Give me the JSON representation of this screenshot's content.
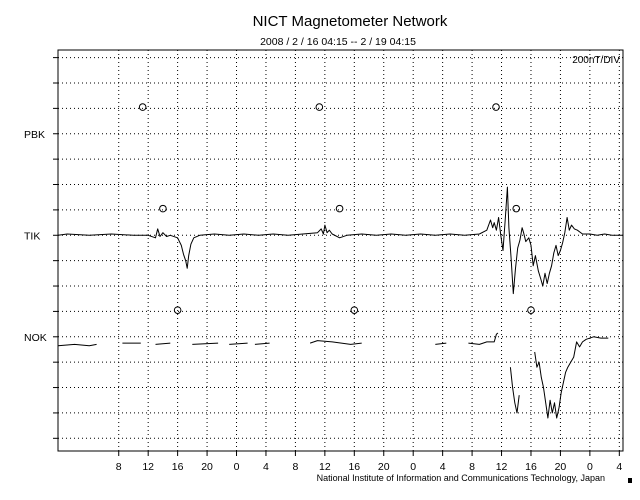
{
  "chart_data": {
    "type": "line",
    "title": "NICT Magnetometer Network",
    "subtitle": "2008 / 2 / 16  04:15 -- 2 / 19  04:15",
    "scale_label": "200nT/DIV",
    "credit": "National Institute of Information and Communications Technology, Japan",
    "x_tick_labels": [
      "8",
      "12",
      "16",
      "20",
      "0",
      "4",
      "8",
      "12",
      "16",
      "20",
      "0",
      "4",
      "8",
      "12",
      "16",
      "20",
      "0",
      "4"
    ],
    "x_tick_hours": [
      4.0,
      8.0,
      12.0,
      16.0,
      20.0,
      24.0,
      28.0,
      32.0,
      36.0,
      40.0,
      44.0,
      48.0,
      52.0,
      56.0,
      60.0,
      64.0,
      68.0,
      72.0
    ],
    "x_range_hours": [
      -4.25,
      72.5
    ],
    "y_range_div": [
      -8.5,
      7.3
    ],
    "grid": true,
    "local_midnight_marker": "circle",
    "series": [
      {
        "name": "PBK",
        "offset_div": 4.0,
        "local_midnight_hours": [
          7.25,
          31.25,
          55.25
        ],
        "points": []
      },
      {
        "name": "TIK",
        "offset_div": 0.0,
        "local_midnight_hours": [
          10.0,
          34.0,
          58.0
        ],
        "points": [
          [
            -4.25,
            0.0
          ],
          [
            -3,
            0.05
          ],
          [
            0,
            0.0
          ],
          [
            3,
            0.05
          ],
          [
            6,
            0.0
          ],
          [
            8,
            0.0
          ],
          [
            9,
            -0.1
          ],
          [
            9.3,
            0.25
          ],
          [
            9.6,
            -0.05
          ],
          [
            10,
            0.1
          ],
          [
            10.5,
            -0.05
          ],
          [
            11,
            0.0
          ],
          [
            12,
            -0.1
          ],
          [
            12.5,
            -0.4
          ],
          [
            12.8,
            -0.75
          ],
          [
            13.1,
            -1.0
          ],
          [
            13.3,
            -1.3
          ],
          [
            13.5,
            -0.8
          ],
          [
            13.8,
            -0.35
          ],
          [
            14.2,
            -0.1
          ],
          [
            15,
            0.0
          ],
          [
            17,
            0.05
          ],
          [
            19,
            0.0
          ],
          [
            21,
            0.05
          ],
          [
            23,
            0.0
          ],
          [
            25,
            0.05
          ],
          [
            27,
            0.0
          ],
          [
            29,
            0.05
          ],
          [
            31,
            0.1
          ],
          [
            31.5,
            0.25
          ],
          [
            31.8,
            0.05
          ],
          [
            32,
            0.4
          ],
          [
            32.3,
            0.1
          ],
          [
            32.6,
            0.2
          ],
          [
            33,
            0.05
          ],
          [
            34,
            -0.1
          ],
          [
            35,
            0.0
          ],
          [
            37,
            0.05
          ],
          [
            39,
            0.0
          ],
          [
            41,
            0.05
          ],
          [
            43,
            0.0
          ],
          [
            45,
            0.05
          ],
          [
            47,
            0.0
          ],
          [
            49,
            0.05
          ],
          [
            51,
            0.0
          ],
          [
            53,
            0.05
          ],
          [
            54,
            0.2
          ],
          [
            54.5,
            0.6
          ],
          [
            54.8,
            0.3
          ],
          [
            55,
            0.5
          ],
          [
            55.3,
            0.2
          ],
          [
            55.6,
            0.7
          ],
          [
            55.9,
            0.0
          ],
          [
            56.2,
            -0.6
          ],
          [
            56.5,
            0.6
          ],
          [
            56.8,
            1.9
          ],
          [
            57.0,
            0.3
          ],
          [
            57.3,
            -0.9
          ],
          [
            57.6,
            -2.3
          ],
          [
            57.9,
            -1.3
          ],
          [
            58.2,
            -0.5
          ],
          [
            58.5,
            -0.2
          ],
          [
            58.8,
            0.3
          ],
          [
            59.0,
            0.1
          ],
          [
            59.3,
            -0.25
          ],
          [
            59.7,
            -0.1
          ],
          [
            60.0,
            -0.4
          ],
          [
            60.3,
            -1.2
          ],
          [
            60.6,
            -0.8
          ],
          [
            61.0,
            -1.4
          ],
          [
            61.3,
            -1.7
          ],
          [
            61.6,
            -2.0
          ],
          [
            61.9,
            -1.5
          ],
          [
            62.2,
            -1.9
          ],
          [
            62.5,
            -1.5
          ],
          [
            62.8,
            -1.2
          ],
          [
            63.1,
            -0.7
          ],
          [
            63.4,
            -0.4
          ],
          [
            63.7,
            -0.8
          ],
          [
            64.0,
            -0.6
          ],
          [
            64.3,
            -0.3
          ],
          [
            64.6,
            0.1
          ],
          [
            64.9,
            0.7
          ],
          [
            65.2,
            0.2
          ],
          [
            65.5,
            0.4
          ],
          [
            65.9,
            0.25
          ],
          [
            66.3,
            0.2
          ],
          [
            67,
            0.05
          ],
          [
            68,
            0.05
          ],
          [
            69,
            0.0
          ],
          [
            70,
            0.05
          ],
          [
            71,
            0.0
          ],
          [
            72.5,
            0.0
          ]
        ]
      },
      {
        "name": "NOK",
        "offset_div": -4.0,
        "local_midnight_hours": [
          12.0,
          36.0,
          60.0
        ],
        "points": [
          [
            -4.25,
            -0.35
          ],
          [
            -2,
            -0.3
          ],
          [
            0,
            -0.35
          ],
          [
            1,
            -0.3
          ],
          null,
          [
            4.5,
            -0.25
          ],
          [
            7,
            -0.25
          ],
          null,
          [
            9,
            -0.3
          ],
          [
            11,
            -0.25
          ],
          null,
          [
            14,
            -0.3
          ],
          [
            17.5,
            -0.25
          ],
          null,
          [
            19,
            -0.3
          ],
          [
            21.5,
            -0.25
          ],
          null,
          [
            22.5,
            -0.3
          ],
          [
            24.5,
            -0.25
          ],
          null,
          [
            30,
            -0.25
          ],
          [
            31,
            -0.15
          ],
          [
            33,
            -0.2
          ],
          [
            35.5,
            -0.3
          ],
          [
            37,
            -0.25
          ],
          null,
          [
            47,
            -0.3
          ],
          [
            48.5,
            -0.25
          ],
          null,
          [
            51.5,
            -0.25
          ],
          [
            53,
            -0.3
          ],
          [
            54,
            -0.2
          ],
          [
            55.0,
            -0.2
          ],
          [
            55.3,
            0.1
          ],
          [
            55.5,
            0.15
          ],
          null,
          [
            57.2,
            -1.2
          ],
          [
            57.5,
            -2.0
          ],
          [
            57.8,
            -2.6
          ],
          [
            58.1,
            -3.0
          ],
          [
            58.4,
            -2.3
          ],
          null,
          [
            60.5,
            -0.6
          ],
          [
            60.8,
            -1.2
          ],
          [
            61.1,
            -1.0
          ],
          [
            61.4,
            -1.6
          ],
          [
            61.7,
            -2.0
          ],
          [
            62.0,
            -2.6
          ],
          [
            62.3,
            -3.2
          ],
          [
            62.6,
            -2.5
          ],
          [
            62.9,
            -3.0
          ],
          [
            63.2,
            -2.6
          ],
          [
            63.5,
            -3.2
          ],
          [
            63.8,
            -2.8
          ],
          [
            64.1,
            -2.2
          ],
          [
            64.4,
            -1.8
          ],
          [
            64.7,
            -1.4
          ],
          [
            65.0,
            -1.2
          ],
          [
            65.4,
            -1.0
          ],
          [
            65.8,
            -0.8
          ],
          [
            66.2,
            -0.2
          ],
          [
            66.6,
            -0.4
          ],
          [
            67.0,
            -0.2
          ],
          [
            67.5,
            -0.1
          ],
          [
            68.5,
            0.0
          ],
          [
            69.5,
            -0.05
          ],
          [
            70.5,
            -0.05
          ]
        ]
      }
    ]
  }
}
